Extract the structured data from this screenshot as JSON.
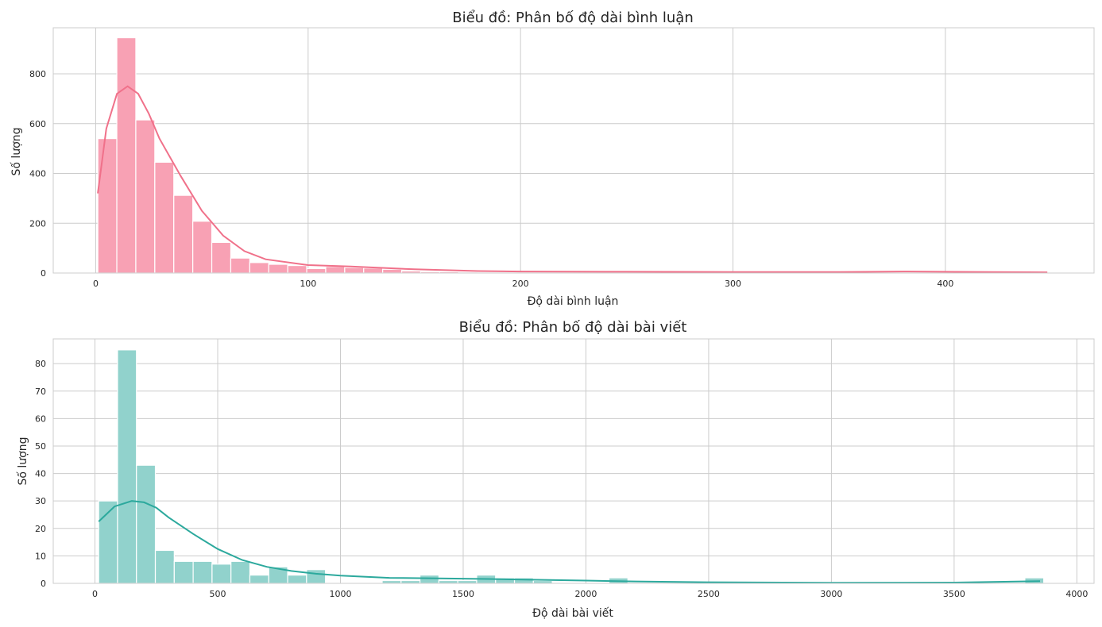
{
  "chart_data": [
    {
      "type": "bar",
      "subtype": "histogram_with_kde",
      "title": "Biểu đồ: Phân bố độ dài bình luận",
      "xlabel": "Độ dài bình luận",
      "ylabel": "Số lượng",
      "xlim": [
        -20,
        470
      ],
      "ylim": [
        0,
        985
      ],
      "xticks": [
        0,
        100,
        200,
        300,
        400
      ],
      "yticks": [
        0,
        200,
        400,
        600,
        800
      ],
      "grid": true,
      "bar_color": "#f8a1b4",
      "line_color": "#f0718a",
      "bin_start": 1,
      "bin_width": 8.94,
      "counts": [
        540,
        945,
        615,
        445,
        312,
        208,
        123,
        60,
        42,
        35,
        30,
        18,
        26,
        22,
        20,
        15,
        8,
        5,
        5,
        4,
        3,
        3,
        2,
        2,
        2,
        2,
        2,
        2,
        1,
        1,
        1,
        1,
        1,
        1,
        1,
        1,
        1,
        1,
        1,
        1,
        1,
        1,
        1,
        1,
        1,
        1,
        1,
        1,
        1,
        1
      ],
      "kde": {
        "x": [
          1,
          5,
          10,
          15,
          20,
          25,
          30,
          40,
          50,
          60,
          70,
          80,
          100,
          120,
          150,
          180,
          200,
          250,
          300,
          350,
          380,
          420,
          448
        ],
        "y": [
          320,
          580,
          720,
          750,
          720,
          640,
          540,
          390,
          250,
          150,
          88,
          55,
          32,
          26,
          15,
          8,
          6,
          5,
          4,
          4,
          6,
          4,
          3
        ]
      }
    },
    {
      "type": "bar",
      "subtype": "histogram_with_kde",
      "title": "Biểu đồ: Phân bố độ dài bài viết",
      "xlabel": "Độ dài bài viết",
      "ylabel": "Số lượng",
      "xlim": [
        -170,
        4070
      ],
      "ylim": [
        0,
        89
      ],
      "xticks": [
        0,
        500,
        1000,
        1500,
        2000,
        2500,
        3000,
        3500,
        4000
      ],
      "yticks": [
        0,
        10,
        20,
        30,
        40,
        50,
        60,
        70,
        80
      ],
      "grid": true,
      "bar_color": "#91d2cc",
      "line_color": "#2ca99d",
      "bin_start": 15,
      "bin_width": 77,
      "counts": [
        30,
        85,
        43,
        12,
        8,
        8,
        7,
        8,
        3,
        6,
        3,
        5,
        0,
        0,
        0,
        1,
        1,
        3,
        1,
        1,
        3,
        2,
        2,
        1,
        0,
        0,
        0,
        2,
        0,
        0,
        0,
        0,
        0,
        0,
        0,
        0,
        0,
        0,
        0,
        0,
        0,
        0,
        0,
        0,
        0,
        0,
        0,
        0,
        0,
        2
      ],
      "kde": {
        "x": [
          15,
          80,
          150,
          200,
          250,
          300,
          400,
          500,
          600,
          700,
          800,
          900,
          1000,
          1200,
          1400,
          1600,
          1800,
          2000,
          2200,
          2500,
          3000,
          3500,
          3850
        ],
        "y": [
          22.5,
          28,
          30,
          29.5,
          27.5,
          24,
          18,
          12.5,
          8.5,
          6,
          4.5,
          3.5,
          2.8,
          2,
          1.8,
          1.6,
          1.3,
          1,
          0.7,
          0.4,
          0.2,
          0.3,
          0.8
        ]
      }
    }
  ]
}
